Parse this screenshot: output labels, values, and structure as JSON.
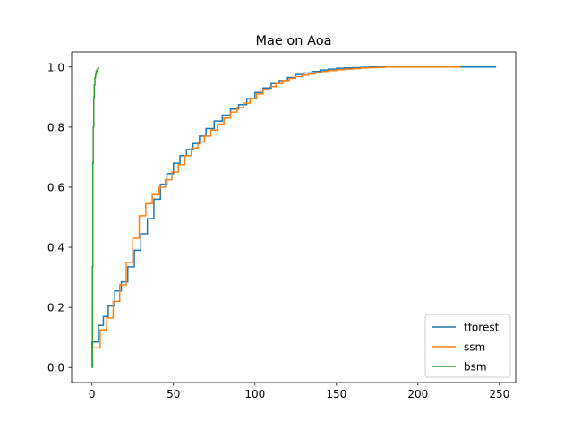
{
  "chart_data": {
    "type": "line",
    "title": "Mae on Aoa",
    "xlabel": "",
    "ylabel": "",
    "xlim": [
      -12.5,
      260
    ],
    "ylim": [
      -0.05,
      1.05
    ],
    "xticks": [
      0,
      50,
      100,
      150,
      200,
      250
    ],
    "yticks": [
      0.0,
      0.2,
      0.4,
      0.6,
      0.8,
      1.0
    ],
    "xtick_labels": [
      "0",
      "50",
      "100",
      "150",
      "200",
      "250"
    ],
    "ytick_labels": [
      "0.0",
      "0.2",
      "0.4",
      "0.6",
      "0.8",
      "1.0"
    ],
    "grid": false,
    "legend_position": "bottom-right",
    "series": [
      {
        "name": "tforest",
        "color": "#1f77b4",
        "step": true,
        "x": [
          0,
          0,
          4,
          7,
          10,
          14,
          18,
          22,
          26,
          30,
          34,
          38,
          42,
          46,
          50,
          54,
          58,
          62,
          66,
          70,
          75,
          80,
          85,
          90,
          95,
          100,
          105,
          110,
          115,
          120,
          125,
          130,
          135,
          140,
          145,
          150,
          155,
          160,
          165,
          170,
          175,
          180,
          200,
          218,
          232,
          248
        ],
        "y": [
          0.0,
          0.085,
          0.14,
          0.17,
          0.205,
          0.255,
          0.285,
          0.335,
          0.39,
          0.445,
          0.495,
          0.56,
          0.61,
          0.645,
          0.68,
          0.705,
          0.725,
          0.745,
          0.77,
          0.795,
          0.82,
          0.84,
          0.86,
          0.875,
          0.895,
          0.915,
          0.93,
          0.945,
          0.955,
          0.965,
          0.975,
          0.98,
          0.985,
          0.99,
          0.993,
          0.996,
          0.997,
          0.998,
          0.999,
          1.0,
          1.0,
          1.0,
          1.0,
          1.0,
          1.0,
          1.0
        ]
      },
      {
        "name": "ssm",
        "color": "#ff7f0e",
        "step": true,
        "x": [
          0,
          0,
          5,
          9,
          13,
          17,
          21,
          25,
          29,
          33,
          37,
          41,
          45,
          49,
          53,
          57,
          61,
          65,
          69,
          73,
          77,
          81,
          85,
          89,
          93,
          97,
          101,
          105,
          109,
          113,
          117,
          121,
          125,
          129,
          133,
          137,
          141,
          145,
          150,
          155,
          160,
          165,
          170,
          175,
          180,
          185,
          190,
          200,
          210,
          226
        ],
        "y": [
          0.0,
          0.065,
          0.125,
          0.165,
          0.22,
          0.275,
          0.35,
          0.43,
          0.505,
          0.545,
          0.575,
          0.6,
          0.625,
          0.65,
          0.675,
          0.705,
          0.73,
          0.75,
          0.77,
          0.79,
          0.81,
          0.83,
          0.85,
          0.865,
          0.88,
          0.895,
          0.91,
          0.925,
          0.935,
          0.945,
          0.955,
          0.962,
          0.968,
          0.973,
          0.977,
          0.981,
          0.985,
          0.988,
          0.991,
          0.993,
          0.995,
          0.997,
          0.998,
          0.999,
          1.0,
          1.0,
          1.0,
          1.0,
          1.0,
          1.0
        ]
      },
      {
        "name": "bsm",
        "color": "#2ca02c",
        "step": true,
        "x": [
          0,
          0.25,
          0.5,
          0.8,
          1.1,
          1.4,
          1.8,
          2.2,
          2.6,
          3.0,
          3.5,
          4.0
        ],
        "y": [
          0.0,
          0.335,
          0.68,
          0.8,
          0.9,
          0.94,
          0.965,
          0.975,
          0.985,
          0.99,
          0.995,
          1.0
        ]
      }
    ]
  }
}
